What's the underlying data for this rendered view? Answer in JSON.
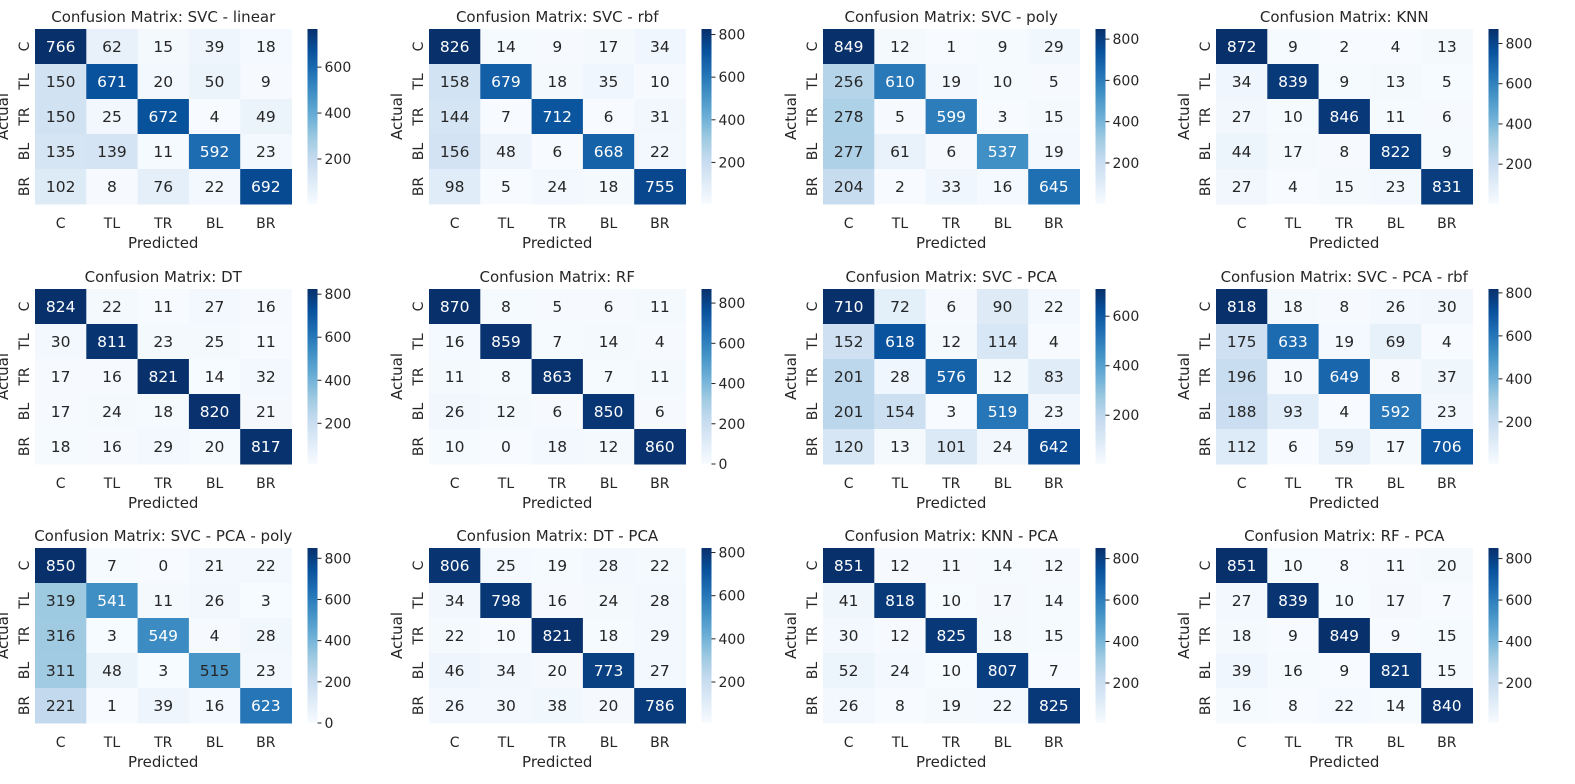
{
  "chart_data": [
    {
      "type": "heatmap",
      "title": "Confusion Matrix: SVC - linear",
      "xlabel": "Predicted",
      "ylabel": "Actual",
      "x_categories": [
        "C",
        "TL",
        "TR",
        "BL",
        "BR"
      ],
      "y_categories": [
        "C",
        "TL",
        "TR",
        "BL",
        "BR"
      ],
      "values": [
        [
          766,
          62,
          15,
          39,
          18
        ],
        [
          150,
          671,
          20,
          50,
          9
        ],
        [
          150,
          25,
          672,
          4,
          49
        ],
        [
          135,
          139,
          11,
          592,
          23
        ],
        [
          102,
          8,
          76,
          22,
          692
        ]
      ],
      "colorbar_ticks": [
        200,
        400,
        600
      ]
    },
    {
      "type": "heatmap",
      "title": "Confusion Matrix: SVC - rbf",
      "xlabel": "Predicted",
      "ylabel": "Actual",
      "x_categories": [
        "C",
        "TL",
        "TR",
        "BL",
        "BR"
      ],
      "y_categories": [
        "C",
        "TL",
        "TR",
        "BL",
        "BR"
      ],
      "values": [
        [
          826,
          14,
          9,
          17,
          34
        ],
        [
          158,
          679,
          18,
          35,
          10
        ],
        [
          144,
          7,
          712,
          6,
          31
        ],
        [
          156,
          48,
          6,
          668,
          22
        ],
        [
          98,
          5,
          24,
          18,
          755
        ]
      ],
      "colorbar_ticks": [
        200,
        400,
        600,
        800
      ]
    },
    {
      "type": "heatmap",
      "title": "Confusion Matrix: SVC - poly",
      "xlabel": "Predicted",
      "ylabel": "Actual",
      "x_categories": [
        "C",
        "TL",
        "TR",
        "BL",
        "BR"
      ],
      "y_categories": [
        "C",
        "TL",
        "TR",
        "BL",
        "BR"
      ],
      "values": [
        [
          849,
          12,
          1,
          9,
          29
        ],
        [
          256,
          610,
          19,
          10,
          5
        ],
        [
          278,
          5,
          599,
          3,
          15
        ],
        [
          277,
          61,
          6,
          537,
          19
        ],
        [
          204,
          2,
          33,
          16,
          645
        ]
      ],
      "colorbar_ticks": [
        200,
        400,
        600,
        800
      ]
    },
    {
      "type": "heatmap",
      "title": "Confusion Matrix: KNN",
      "xlabel": "Predicted",
      "ylabel": "Actual",
      "x_categories": [
        "C",
        "TL",
        "TR",
        "BL",
        "BR"
      ],
      "y_categories": [
        "C",
        "TL",
        "TR",
        "BL",
        "BR"
      ],
      "values": [
        [
          872,
          9,
          2,
          4,
          13
        ],
        [
          34,
          839,
          9,
          13,
          5
        ],
        [
          27,
          10,
          846,
          11,
          6
        ],
        [
          44,
          17,
          8,
          822,
          9
        ],
        [
          27,
          4,
          15,
          23,
          831
        ]
      ],
      "colorbar_ticks": [
        200,
        400,
        600,
        800
      ]
    },
    {
      "type": "heatmap",
      "title": "Confusion Matrix: DT",
      "xlabel": "Predicted",
      "ylabel": "Actual",
      "x_categories": [
        "C",
        "TL",
        "TR",
        "BL",
        "BR"
      ],
      "y_categories": [
        "C",
        "TL",
        "TR",
        "BL",
        "BR"
      ],
      "values": [
        [
          824,
          22,
          11,
          27,
          16
        ],
        [
          30,
          811,
          23,
          25,
          11
        ],
        [
          17,
          16,
          821,
          14,
          32
        ],
        [
          17,
          24,
          18,
          820,
          21
        ],
        [
          18,
          16,
          29,
          20,
          817
        ]
      ],
      "colorbar_ticks": [
        200,
        400,
        600,
        800
      ]
    },
    {
      "type": "heatmap",
      "title": "Confusion Matrix: RF",
      "xlabel": "Predicted",
      "ylabel": "Actual",
      "x_categories": [
        "C",
        "TL",
        "TR",
        "BL",
        "BR"
      ],
      "y_categories": [
        "C",
        "TL",
        "TR",
        "BL",
        "BR"
      ],
      "values": [
        [
          870,
          8,
          5,
          6,
          11
        ],
        [
          16,
          859,
          7,
          14,
          4
        ],
        [
          11,
          8,
          863,
          7,
          11
        ],
        [
          26,
          12,
          6,
          850,
          6
        ],
        [
          10,
          0,
          18,
          12,
          860
        ]
      ],
      "colorbar_ticks": [
        0,
        200,
        400,
        600,
        800
      ]
    },
    {
      "type": "heatmap",
      "title": "Confusion Matrix: SVC - PCA",
      "xlabel": "Predicted",
      "ylabel": "Actual",
      "x_categories": [
        "C",
        "TL",
        "TR",
        "BL",
        "BR"
      ],
      "y_categories": [
        "C",
        "TL",
        "TR",
        "BL",
        "BR"
      ],
      "values": [
        [
          710,
          72,
          6,
          90,
          22
        ],
        [
          152,
          618,
          12,
          114,
          4
        ],
        [
          201,
          28,
          576,
          12,
          83
        ],
        [
          201,
          154,
          3,
          519,
          23
        ],
        [
          120,
          13,
          101,
          24,
          642
        ]
      ],
      "colorbar_ticks": [
        200,
        400,
        600
      ]
    },
    {
      "type": "heatmap",
      "title": "Confusion Matrix: SVC - PCA - rbf",
      "xlabel": "Predicted",
      "ylabel": "Actual",
      "x_categories": [
        "C",
        "TL",
        "TR",
        "BL",
        "BR"
      ],
      "y_categories": [
        "C",
        "TL",
        "TR",
        "BL",
        "BR"
      ],
      "values": [
        [
          818,
          18,
          8,
          26,
          30
        ],
        [
          175,
          633,
          19,
          69,
          4
        ],
        [
          196,
          10,
          649,
          8,
          37
        ],
        [
          188,
          93,
          4,
          592,
          23
        ],
        [
          112,
          6,
          59,
          17,
          706
        ]
      ],
      "colorbar_ticks": [
        200,
        400,
        600,
        800
      ]
    },
    {
      "type": "heatmap",
      "title": "Confusion Matrix: SVC - PCA - poly",
      "xlabel": "Predicted",
      "ylabel": "Actual",
      "x_categories": [
        "C",
        "TL",
        "TR",
        "BL",
        "BR"
      ],
      "y_categories": [
        "C",
        "TL",
        "TR",
        "BL",
        "BR"
      ],
      "values": [
        [
          850,
          7,
          0,
          21,
          22
        ],
        [
          319,
          541,
          11,
          26,
          3
        ],
        [
          316,
          3,
          549,
          4,
          28
        ],
        [
          311,
          48,
          3,
          515,
          23
        ],
        [
          221,
          1,
          39,
          16,
          623
        ]
      ],
      "colorbar_ticks": [
        0,
        200,
        400,
        600,
        800
      ]
    },
    {
      "type": "heatmap",
      "title": "Confusion Matrix: DT - PCA",
      "xlabel": "Predicted",
      "ylabel": "Actual",
      "x_categories": [
        "C",
        "TL",
        "TR",
        "BL",
        "BR"
      ],
      "y_categories": [
        "C",
        "TL",
        "TR",
        "BL",
        "BR"
      ],
      "values": [
        [
          806,
          25,
          19,
          28,
          22
        ],
        [
          34,
          798,
          16,
          24,
          28
        ],
        [
          22,
          10,
          821,
          18,
          29
        ],
        [
          46,
          34,
          20,
          773,
          27
        ],
        [
          26,
          30,
          38,
          20,
          786
        ]
      ],
      "colorbar_ticks": [
        200,
        400,
        600,
        800
      ]
    },
    {
      "type": "heatmap",
      "title": "Confusion Matrix: KNN - PCA",
      "xlabel": "Predicted",
      "ylabel": "Actual",
      "x_categories": [
        "C",
        "TL",
        "TR",
        "BL",
        "BR"
      ],
      "y_categories": [
        "C",
        "TL",
        "TR",
        "BL",
        "BR"
      ],
      "values": [
        [
          851,
          12,
          11,
          14,
          12
        ],
        [
          41,
          818,
          10,
          17,
          14
        ],
        [
          30,
          12,
          825,
          18,
          15
        ],
        [
          52,
          24,
          10,
          807,
          7
        ],
        [
          26,
          8,
          19,
          22,
          825
        ]
      ],
      "colorbar_ticks": [
        200,
        400,
        600,
        800
      ]
    },
    {
      "type": "heatmap",
      "title": "Confusion Matrix: RF - PCA",
      "xlabel": "Predicted",
      "ylabel": "Actual",
      "x_categories": [
        "C",
        "TL",
        "TR",
        "BL",
        "BR"
      ],
      "y_categories": [
        "C",
        "TL",
        "TR",
        "BL",
        "BR"
      ],
      "values": [
        [
          851,
          10,
          8,
          11,
          20
        ],
        [
          27,
          839,
          10,
          17,
          7
        ],
        [
          18,
          9,
          849,
          9,
          15
        ],
        [
          39,
          16,
          9,
          821,
          15
        ],
        [
          16,
          8,
          22,
          14,
          840
        ]
      ],
      "colorbar_ticks": [
        200,
        400,
        600,
        800
      ]
    }
  ]
}
